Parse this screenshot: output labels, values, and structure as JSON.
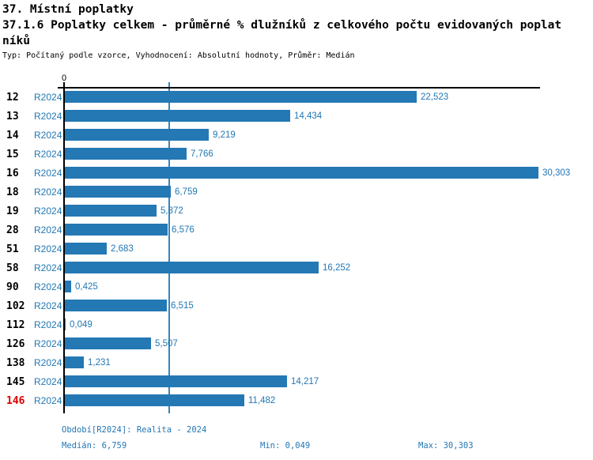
{
  "header": {
    "line1": "37. Místní poplatky",
    "line2": "37.1.6 Poplatky celkem - průměrné % dlužníků z celkového počtu evidovaných poplat",
    "line3": "níků",
    "meta": "Typ: Počítaný podle vzorce, Vyhodnocení: Absolutní hodnoty, Průměr: Medián"
  },
  "chart_data": {
    "type": "bar",
    "orientation": "horizontal",
    "title": "37.1.6 Poplatky celkem - průměrné % dlužníků z celkového počtu evidovaných poplatníků",
    "zero_tick_label": "0",
    "series_label": "R2024",
    "categories": [
      "12",
      "13",
      "14",
      "15",
      "16",
      "18",
      "19",
      "28",
      "51",
      "58",
      "90",
      "102",
      "112",
      "126",
      "138",
      "145",
      "146"
    ],
    "values": [
      22.523,
      14.434,
      9.219,
      7.766,
      30.303,
      6.759,
      5.872,
      6.576,
      2.683,
      16.252,
      0.425,
      6.515,
      0.049,
      5.507,
      1.231,
      14.217,
      11.482
    ],
    "value_labels": [
      "22,523",
      "14,434",
      "9,219",
      "7,766",
      "30,303",
      "6,759",
      "5,872",
      "6,576",
      "2,683",
      "16,252",
      "0,425",
      "6,515",
      "0,049",
      "5,507",
      "1,231",
      "14,217",
      "11,482"
    ],
    "highlighted_category": "146",
    "xlim": [
      0,
      30.45
    ],
    "median_reference_line": 6.759,
    "grid": false,
    "legend": "none",
    "colors": {
      "bar": "#2478b4",
      "value_text": "#2277b3",
      "series_text": "#2277b3",
      "category_text": "#000000",
      "category_text_highlight": "#dd0000",
      "axis": "#000000",
      "median_line": "#3585bd"
    }
  },
  "footer": {
    "period": "Období[R2024]: Realita - 2024",
    "median": "Medián: 6,759",
    "min": "Min: 0,049",
    "max": "Max: 30,303"
  }
}
